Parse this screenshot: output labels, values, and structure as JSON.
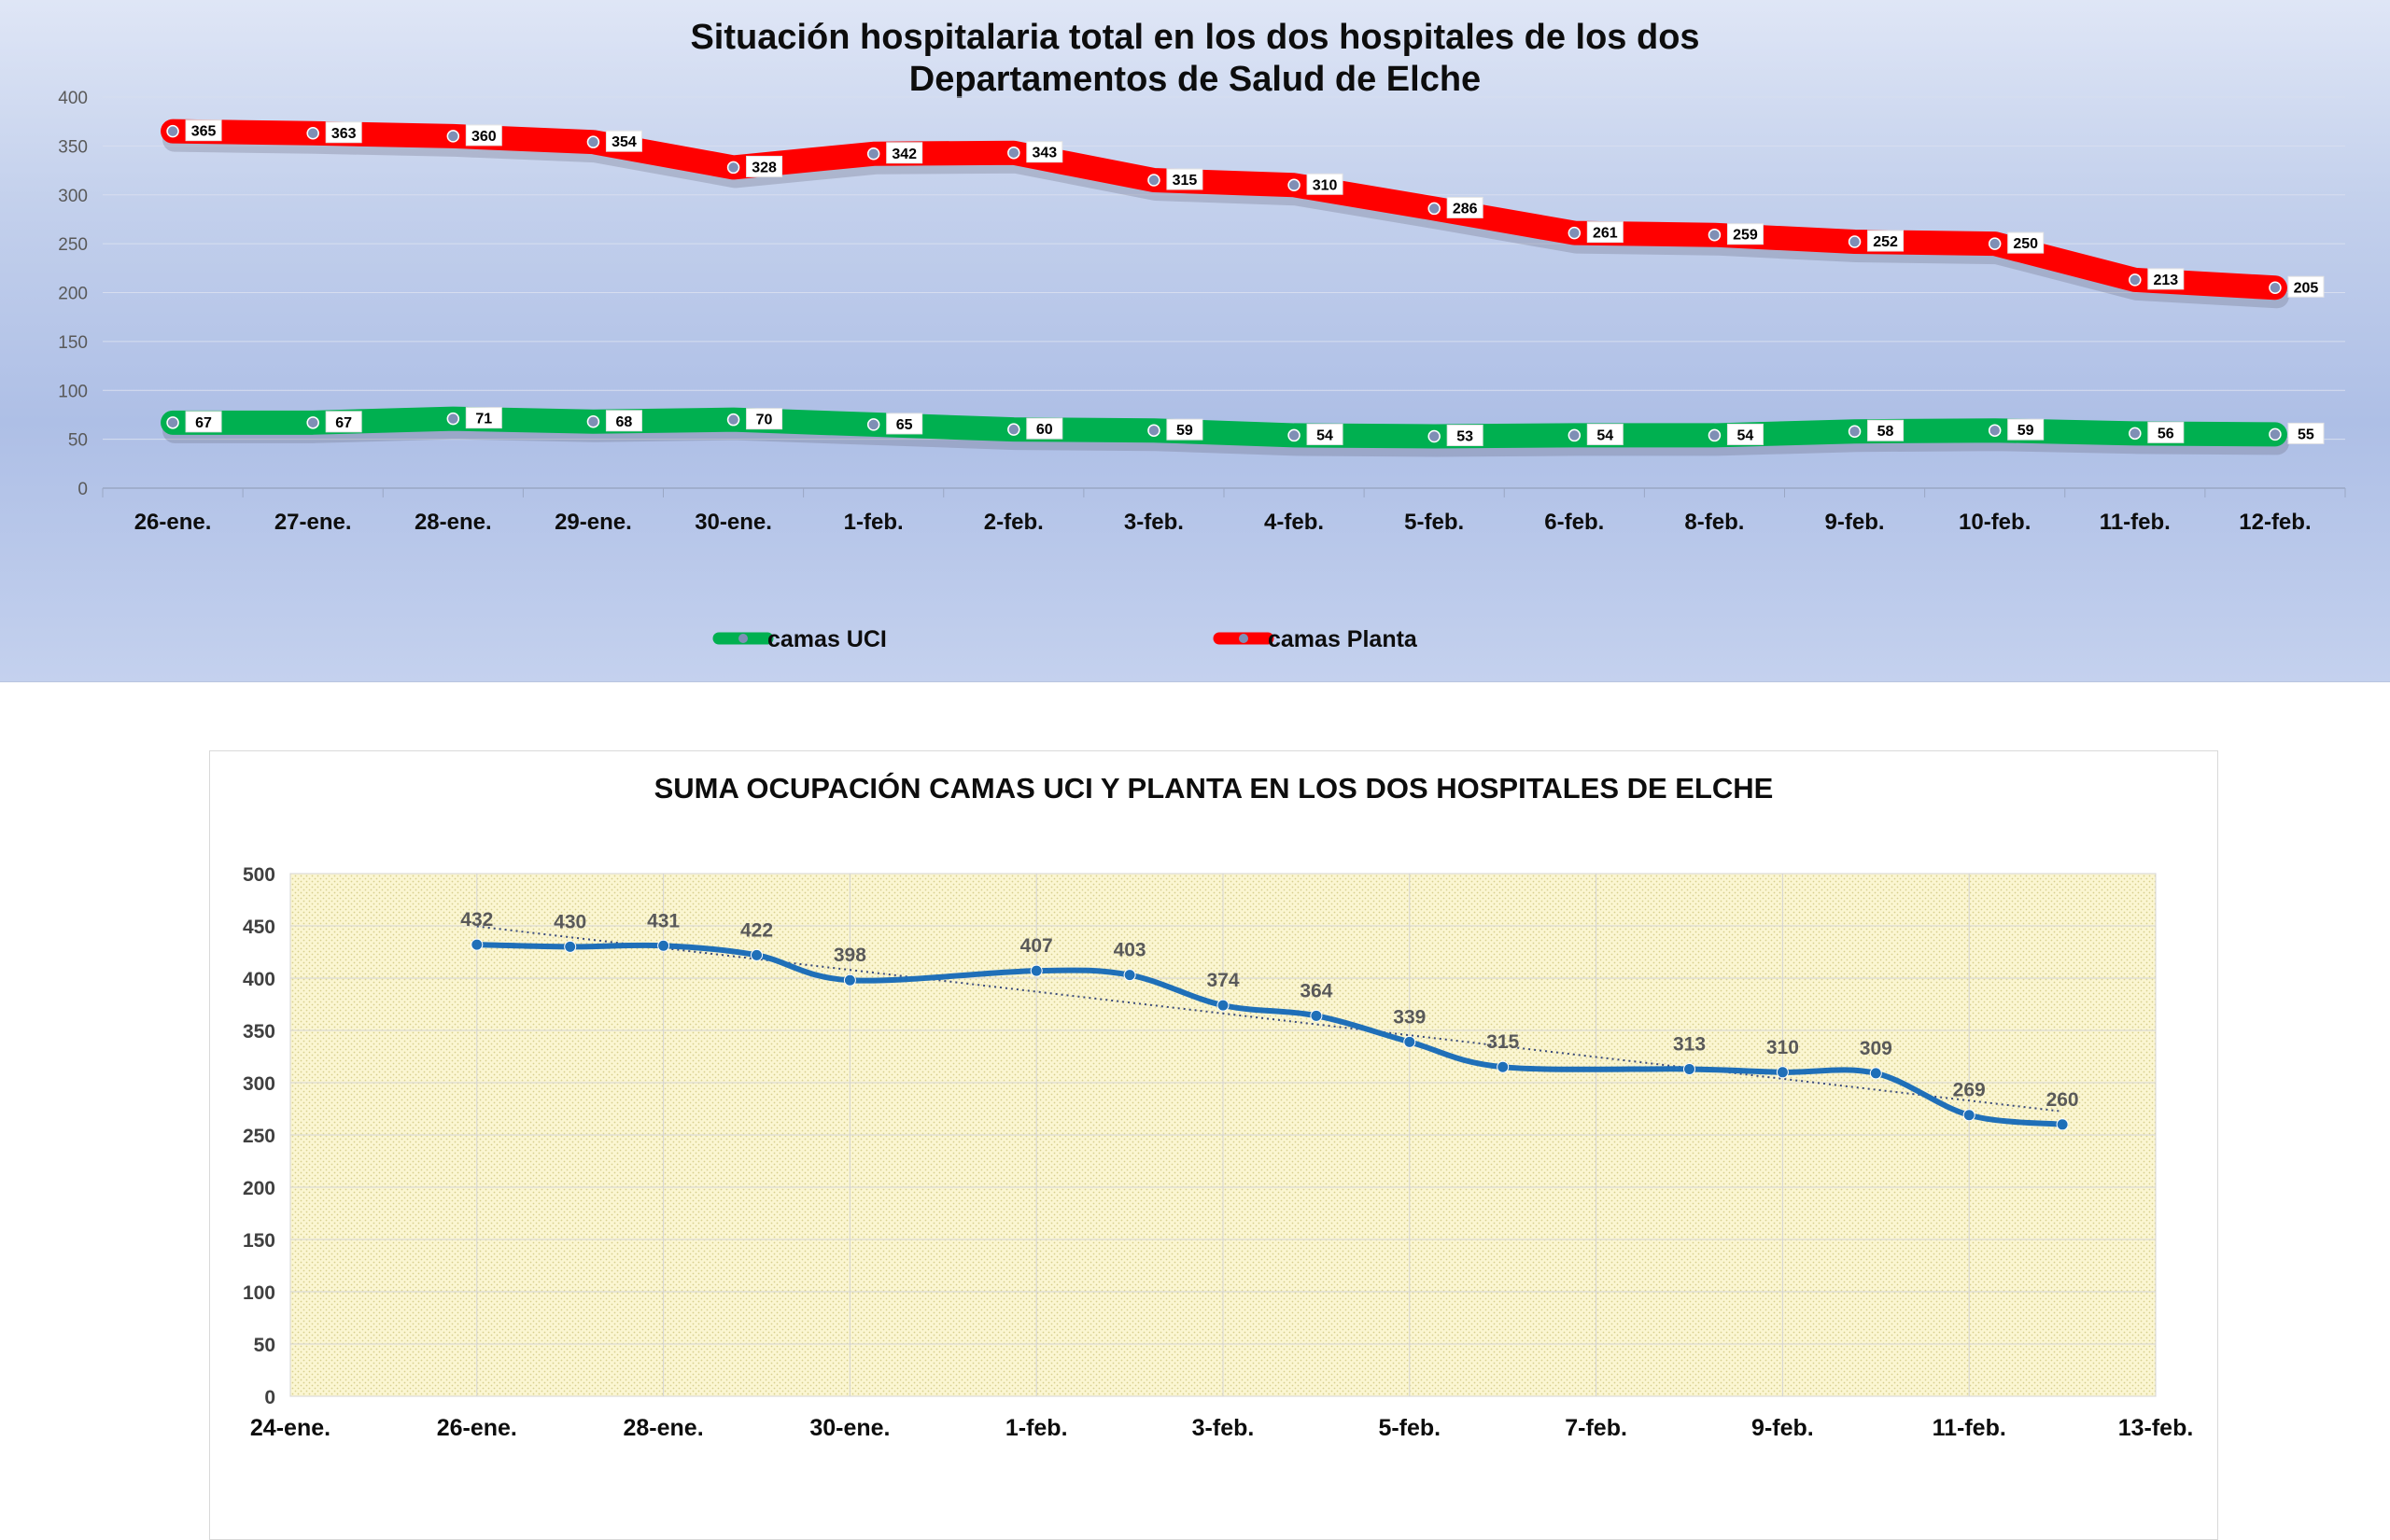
{
  "chart_data": [
    {
      "type": "line",
      "title": "Situación hospitalaria total en los dos hospitales de los dos",
      "subtitle": "Departamentos de Salud de Elche",
      "categories": [
        "26-ene.",
        "27-ene.",
        "28-ene.",
        "29-ene.",
        "30-ene.",
        "1-feb.",
        "2-feb.",
        "3-feb.",
        "4-feb.",
        "5-feb.",
        "6-feb.",
        "8-feb.",
        "9-feb.",
        "10-feb.",
        "11-feb.",
        "12-feb."
      ],
      "series": [
        {
          "name": "camas UCI",
          "color": "#00b050",
          "values": [
            67,
            67,
            71,
            68,
            70,
            65,
            60,
            59,
            54,
            53,
            54,
            54,
            58,
            59,
            56,
            55
          ]
        },
        {
          "name": "camas Planta",
          "color": "#ff0000",
          "values": [
            365,
            363,
            360,
            354,
            328,
            342,
            343,
            315,
            310,
            286,
            261,
            259,
            252,
            250,
            213,
            205
          ]
        }
      ],
      "yticks": [
        "0",
        "50",
        "100",
        "150",
        "200",
        "250",
        "300",
        "350",
        "400"
      ],
      "ylim": [
        0,
        400
      ],
      "grid": true,
      "legend_position": "bottom",
      "background_color": "#c3d0ec"
    },
    {
      "type": "line",
      "title": "SUMA OCUPACIÓN CAMAS UCI Y PLANTA EN LOS DOS HOSPITALES DE ELCHE",
      "series": [
        {
          "color": "#1f6fb8",
          "trendline": "linear",
          "x": [
            "26-ene.",
            "27-ene.",
            "28-ene.",
            "29-ene.",
            "30-ene.",
            "1-feb.",
            "2-feb.",
            "3-feb.",
            "4-feb.",
            "5-feb.",
            "6-feb.",
            "8-feb.",
            "9-feb.",
            "10-feb.",
            "11-feb.",
            "12-feb."
          ],
          "values": [
            432,
            430,
            431,
            422,
            398,
            407,
            403,
            374,
            364,
            339,
            315,
            313,
            310,
            309,
            269,
            260
          ]
        }
      ],
      "xticks": [
        "24-ene.",
        "26-ene.",
        "28-ene.",
        "30-ene.",
        "1-feb.",
        "3-feb.",
        "5-feb.",
        "7-feb.",
        "9-feb.",
        "11-feb.",
        "13-feb."
      ],
      "xlim": [
        "24-ene.",
        "13-feb."
      ],
      "yticks": [
        "0",
        "50",
        "100",
        "150",
        "200",
        "250",
        "300",
        "350",
        "400",
        "450",
        "500"
      ],
      "ylim": [
        0,
        500
      ],
      "grid": true,
      "plot_background_color": "#fbf6d2"
    }
  ]
}
